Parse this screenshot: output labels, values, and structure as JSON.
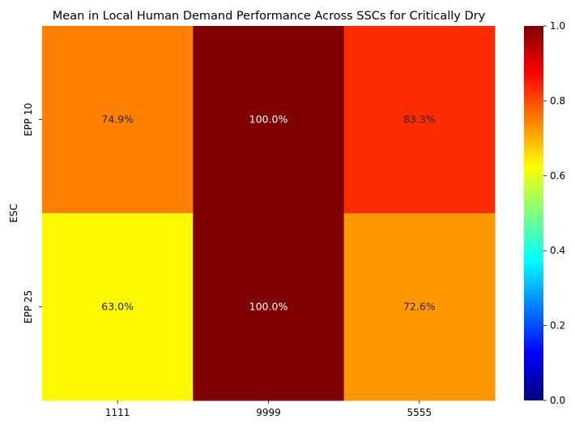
{
  "chart_data": {
    "type": "heatmap",
    "title": "Mean in Local Human Demand Performance Across SSCs for Critically Dry",
    "xlabel": "",
    "ylabel": "ESC",
    "x_categories": [
      "1111",
      "9999",
      "5555"
    ],
    "y_categories": [
      "EPP 10",
      "EPP 25"
    ],
    "values": [
      [
        0.749,
        1.0,
        0.833
      ],
      [
        0.63,
        1.0,
        0.726
      ]
    ],
    "cell_labels": [
      [
        "74.9%",
        "100.0%",
        "83.3%"
      ],
      [
        "63.0%",
        "100.0%",
        "72.6%"
      ]
    ],
    "colormap": "jet",
    "colorbar": {
      "range": [
        0.0,
        1.0
      ],
      "ticks": [
        "0.0",
        "0.2",
        "0.4",
        "0.6",
        "0.8",
        "1.0"
      ],
      "stops": [
        "#00007f",
        "#0000ff",
        "#007fff",
        "#00ffff",
        "#7fff7f",
        "#ffff00",
        "#ff7f00",
        "#ff0000",
        "#7f0000"
      ]
    },
    "grid": false,
    "legend": "colorbar-right"
  }
}
